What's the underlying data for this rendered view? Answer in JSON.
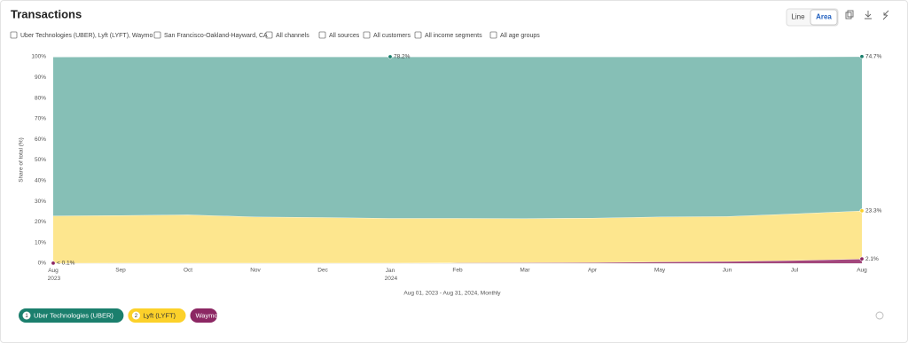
{
  "chart_data": {
    "type": "area",
    "title": "Transactions",
    "filters": [
      "Uber Technologies (UBER), Lyft (LYFT), Waymo",
      "San Francisco-Oakland-Hayward, CA",
      "All channels",
      "All sources",
      "All customers",
      "All income segments",
      "All age groups"
    ],
    "toggle": [
      "Line",
      "Area"
    ],
    "y_label": "Share of total (%)",
    "x_label": "Aug 01, 2023 - Aug 31, 2024, Monthly",
    "categories": [
      "Aug 2023",
      "Sep",
      "Oct",
      "Nov",
      "Dec",
      "Jan 2024",
      "Feb",
      "Mar",
      "Apr",
      "May",
      "Jun",
      "Jul",
      "Aug"
    ],
    "series": [
      {
        "name": "Uber Technologies (UBER)",
        "badge": "1",
        "color": "#86bfb6",
        "legend_color": "#1b7f6d",
        "values": [
          77.0,
          76.8,
          76.5,
          77.5,
          77.8,
          78.2,
          78.2,
          78.3,
          78.1,
          77.5,
          77.3,
          76.0,
          74.7
        ],
        "value_labels": [
          null,
          null,
          null,
          null,
          null,
          "78.2%",
          null,
          null,
          null,
          null,
          null,
          null,
          "74.7%"
        ]
      },
      {
        "name": "Lyft (LYFT)",
        "badge": "2",
        "color": "#fde68e",
        "legend_color": "#fcd12a",
        "values": [
          22.9,
          23.1,
          23.4,
          22.4,
          22.1,
          21.7,
          21.6,
          21.4,
          21.5,
          21.8,
          21.8,
          22.6,
          23.3
        ],
        "value_labels": [
          null,
          null,
          null,
          null,
          null,
          null,
          null,
          null,
          null,
          null,
          null,
          null,
          "23.3%"
        ]
      },
      {
        "name": "Waymo",
        "color": "#a3477c",
        "legend_color": "#8c2763",
        "values": [
          0.05,
          0.1,
          0.1,
          0.1,
          0.1,
          0.1,
          0.2,
          0.3,
          0.4,
          0.7,
          0.9,
          1.4,
          2.1
        ],
        "value_labels": [
          "< 0.1%",
          null,
          null,
          null,
          null,
          null,
          null,
          null,
          null,
          null,
          null,
          null,
          "2.1%"
        ]
      }
    ],
    "ylim": [
      0,
      100
    ],
    "yticks": [
      {
        "value": 0,
        "label": "0%"
      },
      {
        "value": 10,
        "label": "10%"
      },
      {
        "value": 20,
        "label": "20%"
      },
      {
        "value": 30,
        "label": "30%"
      },
      {
        "value": 40,
        "label": "40%"
      },
      {
        "value": 50,
        "label": "50%"
      },
      {
        "value": 60,
        "label": "60%"
      },
      {
        "value": 70,
        "label": "70%"
      },
      {
        "value": 80,
        "label": "80%"
      },
      {
        "value": 90,
        "label": "90%"
      },
      {
        "value": 100,
        "label": "100%"
      }
    ],
    "grid": true
  }
}
